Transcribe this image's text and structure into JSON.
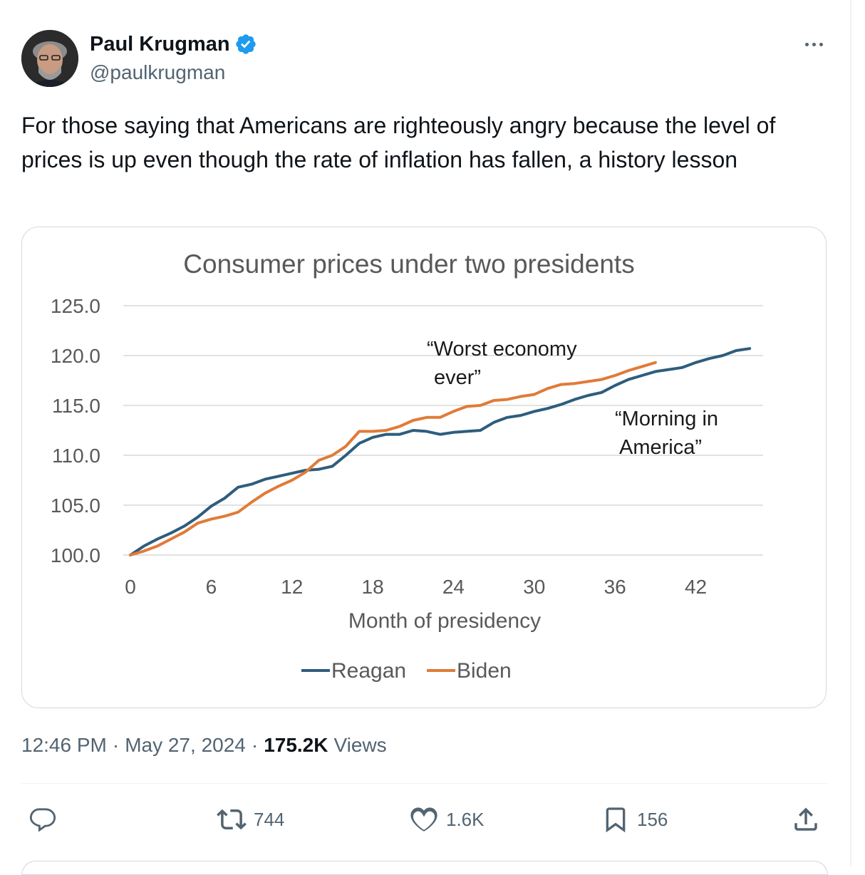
{
  "author": {
    "name": "Paul Krugman",
    "handle": "@paulkrugman",
    "verified": true,
    "avatar_icon": "person-avatar"
  },
  "tweet": {
    "text": "For those saying that Americans are righteously angry because the level of prices is up even though the rate of inflation has fallen, a history lesson",
    "time": "12:46 PM",
    "date": "May 27, 2024",
    "views_count": "175.2K",
    "views_label": "Views"
  },
  "actions": {
    "reply_icon": "reply-icon",
    "retweets": "744",
    "likes": "1.6K",
    "bookmarks": "156",
    "share_icon": "share-icon"
  },
  "colors": {
    "reagan": "#2e5d7d",
    "biden": "#e07b39",
    "verified": "#1d9bf0",
    "secondary_text": "#536471"
  },
  "chart_data": {
    "type": "line",
    "title": "Consumer prices under two presidents",
    "xlabel": "Month of presidency",
    "ylabel": "",
    "xlim": [
      0,
      47
    ],
    "ylim": [
      100,
      125
    ],
    "x_ticks": [
      0,
      6,
      12,
      18,
      24,
      30,
      36,
      42
    ],
    "y_ticks": [
      "100.0",
      "105.0",
      "110.0",
      "115.0",
      "120.0",
      "125.0"
    ],
    "grid": true,
    "legend_position": "bottom",
    "series": [
      {
        "name": "Reagan",
        "color": "#2e5d7d",
        "x": [
          0,
          1,
          2,
          3,
          4,
          5,
          6,
          7,
          8,
          9,
          10,
          11,
          12,
          13,
          14,
          15,
          16,
          17,
          18,
          19,
          20,
          21,
          22,
          23,
          24,
          25,
          26,
          27,
          28,
          29,
          30,
          31,
          32,
          33,
          34,
          35,
          36,
          37,
          38,
          39,
          40,
          41,
          42,
          43,
          44,
          45,
          46
        ],
        "values": [
          100.0,
          100.9,
          101.6,
          102.2,
          102.9,
          103.8,
          104.9,
          105.7,
          106.8,
          107.1,
          107.6,
          107.9,
          108.2,
          108.5,
          108.6,
          108.9,
          110.0,
          111.2,
          111.8,
          112.1,
          112.1,
          112.5,
          112.4,
          112.1,
          112.3,
          112.4,
          112.5,
          113.3,
          113.8,
          114.0,
          114.4,
          114.7,
          115.1,
          115.6,
          116.0,
          116.3,
          117.0,
          117.6,
          118.0,
          118.4,
          118.6,
          118.8,
          119.3,
          119.7,
          120.0,
          120.5,
          120.7
        ]
      },
      {
        "name": "Biden",
        "color": "#e07b39",
        "x": [
          0,
          1,
          2,
          3,
          4,
          5,
          6,
          7,
          8,
          9,
          10,
          11,
          12,
          13,
          14,
          15,
          16,
          17,
          18,
          19,
          20,
          21,
          22,
          23,
          24,
          25,
          26,
          27,
          28,
          29,
          30,
          31,
          32,
          33,
          34,
          35,
          36,
          37,
          38,
          39
        ],
        "values": [
          100.0,
          100.4,
          100.9,
          101.6,
          102.3,
          103.2,
          103.6,
          103.9,
          104.3,
          105.3,
          106.2,
          106.9,
          107.5,
          108.3,
          109.5,
          110.0,
          110.9,
          112.4,
          112.4,
          112.5,
          112.9,
          113.5,
          113.8,
          113.8,
          114.4,
          114.9,
          115.0,
          115.5,
          115.6,
          115.9,
          116.1,
          116.7,
          117.1,
          117.2,
          117.4,
          117.6,
          118.0,
          118.5,
          118.9,
          119.3
        ]
      }
    ],
    "annotations": [
      {
        "text_lines": [
          "“Worst economy",
          "ever”"
        ],
        "refers_to": "Biden"
      },
      {
        "text_lines": [
          "“Morning in",
          "America”"
        ],
        "refers_to": "Reagan"
      }
    ]
  }
}
